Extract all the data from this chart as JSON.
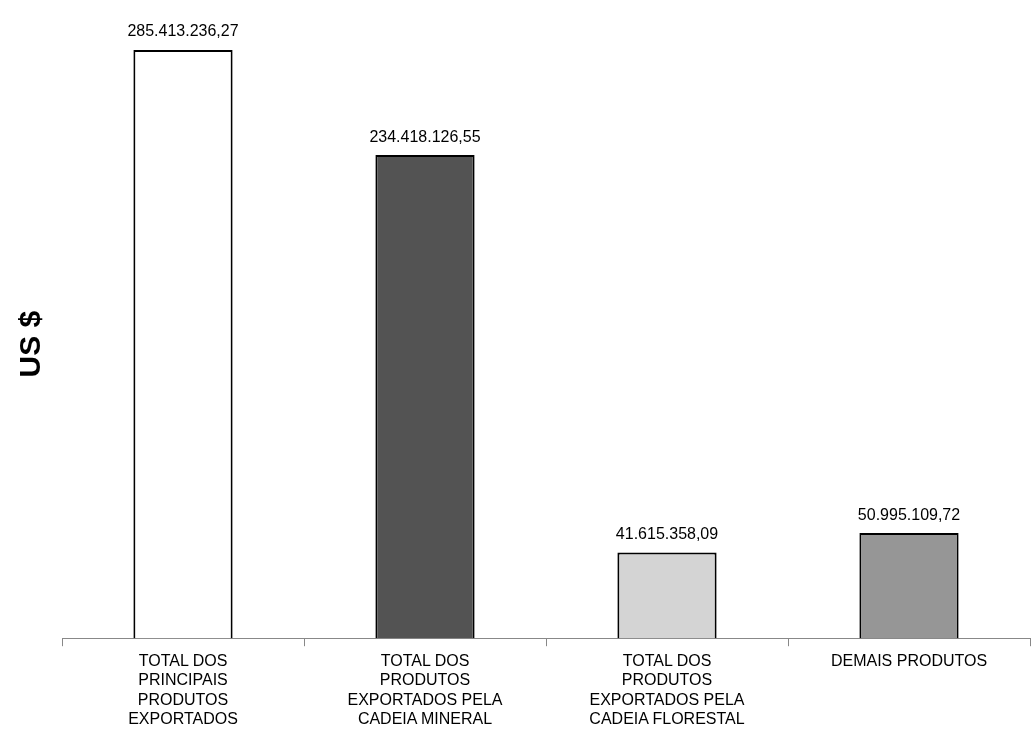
{
  "chart_data": {
    "type": "bar",
    "ylabel": "US $",
    "categories": [
      "TOTAL DOS PRINCIPAIS PRODUTOS EXPORTADOS",
      "TOTAL DOS PRODUTOS EXPORTADOS PELA CADEIA MINERAL",
      "TOTAL DOS PRODUTOS EXPORTADOS PELA CADEIA FLORESTAL",
      "DEMAIS PRODUTOS"
    ],
    "values": [
      285413236.27,
      234418126.55,
      41615358.09,
      50995109.72
    ],
    "value_labels": [
      "285.413.236,27",
      "234.418.126,55",
      "41.615.358,09",
      "50.995.109,72"
    ],
    "colors": [
      "#ffffff",
      "#535353",
      "#d4d4d4",
      "#969696"
    ],
    "legend": false,
    "grid": false
  }
}
